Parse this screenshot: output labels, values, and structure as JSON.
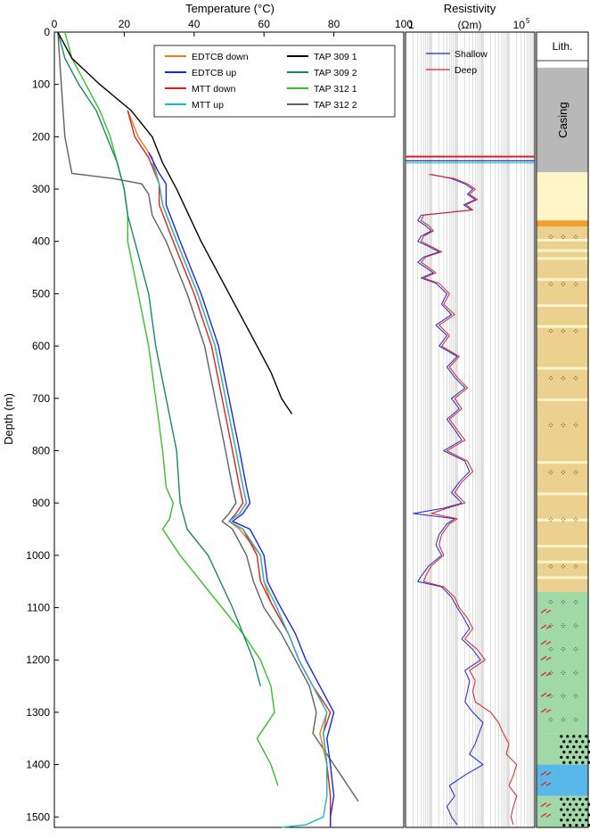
{
  "chart_data": [
    {
      "type": "line",
      "panel": "temperature",
      "xlabel": "Temperature (°C)",
      "ylabel": "Depth (m)",
      "xlim": [
        0,
        100
      ],
      "ylim": [
        0,
        1520
      ],
      "x_ticks": [
        "0",
        "20",
        "40",
        "60",
        "80",
        "100"
      ],
      "y_ticks": [
        "0",
        "100",
        "200",
        "300",
        "400",
        "500",
        "600",
        "700",
        "800",
        "900",
        "1000",
        "1100",
        "1200",
        "1300",
        "1400",
        "1500"
      ],
      "legend_position": "top",
      "series": [
        {
          "name": "EDTCB down",
          "color": "#f07820",
          "depth": [
            150,
            200,
            240,
            290,
            330,
            400,
            500,
            600,
            700,
            800,
            870,
            900,
            920,
            935,
            950,
            1000,
            1050,
            1090,
            1150,
            1200,
            1250,
            1300,
            1340,
            1400,
            1460
          ],
          "temp": [
            21,
            24,
            28,
            30,
            31,
            35,
            41,
            46,
            49,
            52,
            54,
            55,
            53,
            50,
            53,
            59,
            60,
            62,
            67,
            70,
            74,
            78,
            76,
            78,
            78
          ]
        },
        {
          "name": "EDTCB up",
          "color": "#1a28d8",
          "depth": [
            230,
            270,
            290,
            330,
            400,
            500,
            600,
            700,
            800,
            870,
            900,
            920,
            935,
            950,
            1000,
            1050,
            1090,
            1150,
            1200,
            1250,
            1300,
            1350,
            1400,
            1460,
            1500,
            1520
          ],
          "temp": [
            27,
            30,
            32,
            32,
            36,
            42,
            47,
            50,
            53,
            55,
            56,
            54,
            51,
            56,
            60,
            61,
            64,
            69,
            72,
            76,
            80,
            78,
            79,
            80,
            79,
            79
          ]
        },
        {
          "name": "MTT down",
          "color": "#e02020",
          "depth": [
            150,
            200,
            240,
            290,
            330,
            400,
            500,
            600,
            700,
            800,
            870,
            900,
            920,
            935,
            950,
            1000,
            1050,
            1090,
            1150,
            1200,
            1250,
            1300,
            1340,
            1400,
            1460,
            1520
          ],
          "temp": [
            21,
            23,
            27,
            30,
            30,
            34,
            40,
            45,
            48,
            51,
            53,
            54,
            52,
            50,
            54,
            58,
            59,
            62,
            67,
            70,
            74,
            79,
            77,
            78,
            79,
            79
          ]
        },
        {
          "name": "MTT up",
          "color": "#20b8c0",
          "depth": [
            250,
            290,
            330,
            400,
            500,
            600,
            700,
            800,
            870,
            900,
            920,
            935,
            950,
            1000,
            1050,
            1090,
            1150,
            1200,
            1250,
            1300,
            1340,
            1400,
            1460,
            1500,
            1515,
            1520
          ],
          "temp": [
            28,
            30,
            31,
            35,
            41,
            46,
            49,
            52,
            54,
            55,
            53,
            50,
            54,
            59,
            60,
            63,
            67,
            70,
            74,
            78,
            77,
            78,
            78,
            77,
            72,
            65
          ]
        },
        {
          "name": "TAP 309 1",
          "color": "#000000",
          "depth": [
            0,
            50,
            100,
            150,
            200,
            250,
            300,
            400,
            500,
            600,
            650,
            700,
            720,
            730
          ],
          "temp": [
            1,
            5,
            13,
            22,
            28,
            31,
            35,
            42,
            50,
            58,
            62,
            65,
            67,
            68
          ]
        },
        {
          "name": "TAP 309 2",
          "color": "#188868",
          "depth": [
            0,
            50,
            100,
            150,
            200,
            250,
            300,
            350,
            400,
            500,
            600,
            700,
            800,
            900,
            950,
            1000,
            1100,
            1200,
            1250
          ],
          "temp": [
            1,
            3,
            7,
            12,
            15,
            18,
            20,
            21,
            23,
            27,
            29,
            32,
            35,
            36,
            38,
            44,
            51,
            57,
            59
          ]
        },
        {
          "name": "TAP 312 1",
          "color": "#38c028",
          "depth": [
            0,
            50,
            100,
            150,
            200,
            250,
            300,
            350,
            400,
            500,
            600,
            700,
            800,
            870,
            900,
            930,
            950,
            1000,
            1050,
            1100,
            1150,
            1200,
            1250,
            1300,
            1350,
            1400,
            1440
          ],
          "temp": [
            3,
            5,
            9,
            13,
            16,
            18,
            20,
            21,
            21,
            24,
            27,
            29,
            31,
            32,
            34,
            33,
            31,
            36,
            42,
            48,
            54,
            59,
            62,
            63,
            58,
            62,
            64
          ]
        },
        {
          "name": "TAP 312 2",
          "color": "#606060",
          "depth": [
            0,
            100,
            200,
            270,
            280,
            290,
            310,
            350,
            400,
            500,
            600,
            700,
            800,
            870,
            900,
            920,
            935,
            950,
            1000,
            1050,
            1100,
            1150,
            1200,
            1250,
            1300,
            1340,
            1400,
            1440,
            1470
          ],
          "temp": [
            1,
            2,
            3,
            5,
            17,
            25,
            27,
            28,
            32,
            38,
            43,
            46,
            49,
            51,
            52,
            50,
            48,
            51,
            55,
            57,
            60,
            65,
            69,
            73,
            75,
            74,
            80,
            84,
            87
          ]
        }
      ]
    },
    {
      "type": "line",
      "panel": "resistivity",
      "title": "Resistivity",
      "xlabel": "(Ωm)",
      "x_tick_left": "1",
      "x_tick_right": "10",
      "x_tick_right_exp": "5",
      "xlim": [
        1,
        100000
      ],
      "x_scale": "log",
      "ylim": [
        0,
        1520
      ],
      "legend_position": "top-left",
      "series": [
        {
          "name": "Shallow",
          "color": "#1a28d8",
          "depth": [
            272,
            280,
            290,
            300,
            310,
            320,
            330,
            340,
            350,
            360,
            370,
            380,
            390,
            400,
            410,
            420,
            430,
            440,
            450,
            460,
            470,
            480,
            500,
            520,
            540,
            560,
            580,
            600,
            620,
            640,
            660,
            680,
            700,
            720,
            740,
            760,
            780,
            800,
            820,
            840,
            860,
            880,
            900,
            910,
            920,
            930,
            940,
            960,
            980,
            1000,
            1020,
            1040,
            1050,
            1060,
            1080,
            1100,
            1120,
            1140,
            1160,
            1180,
            1200,
            1220,
            1240,
            1260,
            1280,
            1300,
            1320,
            1340,
            1360,
            1380,
            1400,
            1420,
            1440,
            1460,
            1480,
            1500,
            1515
          ],
          "res": [
            10,
            60,
            200,
            400,
            250,
            500,
            180,
            350,
            4,
            3,
            6,
            10,
            4,
            3,
            8,
            20,
            5,
            3,
            6,
            12,
            4,
            15,
            40,
            25,
            60,
            15,
            40,
            20,
            100,
            40,
            80,
            200,
            60,
            120,
            40,
            80,
            150,
            30,
            200,
            300,
            120,
            60,
            150,
            30,
            2,
            80,
            40,
            20,
            15,
            25,
            8,
            4,
            3,
            25,
            60,
            100,
            180,
            300,
            150,
            400,
            800,
            200,
            300,
            250,
            200,
            400,
            1000,
            700,
            500,
            300,
            1000,
            200,
            50,
            80,
            40,
            60,
            100
          ]
        },
        {
          "name": "Deep",
          "color": "#e02020",
          "depth": [
            272,
            280,
            290,
            300,
            310,
            320,
            330,
            340,
            350,
            360,
            370,
            380,
            390,
            400,
            410,
            420,
            430,
            440,
            450,
            460,
            470,
            480,
            500,
            520,
            540,
            560,
            580,
            600,
            620,
            640,
            660,
            680,
            700,
            720,
            740,
            760,
            780,
            800,
            820,
            840,
            860,
            880,
            900,
            910,
            920,
            930,
            940,
            960,
            980,
            1000,
            1020,
            1040,
            1050,
            1060,
            1080,
            1100,
            1120,
            1140,
            1160,
            1180,
            1200,
            1220,
            1240,
            1260,
            1280,
            1300,
            1320,
            1340,
            1360,
            1380,
            1400,
            1420,
            1440,
            1460,
            1480,
            1500,
            1515
          ],
          "res": [
            8,
            80,
            250,
            500,
            300,
            600,
            220,
            400,
            5,
            4,
            8,
            12,
            5,
            4,
            10,
            25,
            6,
            4,
            8,
            15,
            5,
            20,
            50,
            30,
            80,
            20,
            50,
            25,
            120,
            50,
            100,
            250,
            80,
            150,
            50,
            100,
            200,
            40,
            250,
            400,
            150,
            80,
            200,
            40,
            10,
            100,
            50,
            25,
            20,
            30,
            10,
            6,
            5,
            30,
            80,
            120,
            250,
            400,
            200,
            600,
            1200,
            300,
            500,
            400,
            500,
            2000,
            4000,
            6000,
            10000,
            8000,
            20000,
            15000,
            10000,
            20000,
            15000,
            12000,
            15000
          ]
        }
      ],
      "annotations": [
        "Shallow",
        "Deep"
      ]
    },
    {
      "type": "table",
      "panel": "lithology",
      "title": "Lith.",
      "casing_label": "Casing",
      "units": [
        {
          "top": 0,
          "bottom": 268,
          "fill": "#ffffff",
          "pattern": "none"
        },
        {
          "top": 68,
          "bottom": 268,
          "fill": "#b8b8b8",
          "pattern": "casing"
        },
        {
          "top": 268,
          "bottom": 360,
          "fill": "#fff5c8",
          "pattern": "none"
        },
        {
          "top": 360,
          "bottom": 372,
          "fill": "#f0a030",
          "pattern": "none"
        },
        {
          "top": 372,
          "bottom": 1070,
          "fill": "#ecd08e",
          "pattern": "dots"
        },
        {
          "top": 1070,
          "bottom": 1340,
          "fill": "#a0d8a8",
          "pattern": "dots"
        },
        {
          "top": 1340,
          "bottom": 1400,
          "fill": "#a0d8a8",
          "pattern": "conglomerate"
        },
        {
          "top": 1400,
          "bottom": 1460,
          "fill": "#58b8e8",
          "pattern": "none"
        },
        {
          "top": 1460,
          "bottom": 1520,
          "fill": "#a0d8a8",
          "pattern": "conglomerate"
        }
      ],
      "thin_beds": [
        {
          "depth": 395,
          "fill": "#fff5c8"
        },
        {
          "depth": 415,
          "fill": "#fff5c8"
        },
        {
          "depth": 430,
          "fill": "#fff5c8"
        },
        {
          "depth": 470,
          "fill": "#fff5c8"
        },
        {
          "depth": 520,
          "fill": "#fff5c8"
        },
        {
          "depth": 560,
          "fill": "#fff5c8"
        },
        {
          "depth": 640,
          "fill": "#fff5c8"
        },
        {
          "depth": 700,
          "fill": "#fff5c8"
        },
        {
          "depth": 820,
          "fill": "#fff5c8"
        },
        {
          "depth": 880,
          "fill": "#fff5c8"
        },
        {
          "depth": 930,
          "fill": "#fff5c8"
        },
        {
          "depth": 980,
          "fill": "#fff5c8"
        },
        {
          "depth": 1010,
          "fill": "#fff5c8"
        },
        {
          "depth": 1040,
          "fill": "#fff5c8"
        }
      ]
    }
  ]
}
